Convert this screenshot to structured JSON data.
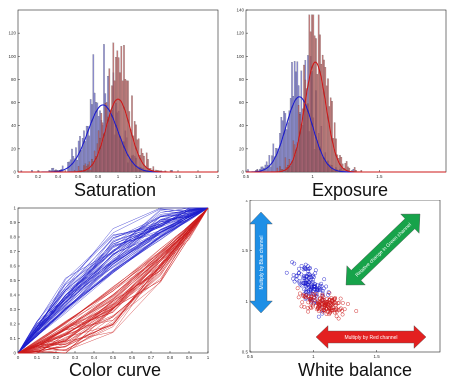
{
  "captions": {
    "saturation": "Saturation",
    "exposure": "Exposure",
    "color_curve": "Color curve",
    "white_balance": "White balance"
  },
  "colors": {
    "blue": "#1c1ccc",
    "red": "#cc1a1a",
    "blue_hist": "#6e6ec8",
    "red_hist": "#b75a5a",
    "arrow_blue": "#1e8fe6",
    "arrow_green": "#17a34a",
    "arrow_red": "#e32020"
  },
  "chart_data": [
    {
      "type": "histogram",
      "title": "Saturation",
      "xlim": [
        0,
        2
      ],
      "ylim": [
        0,
        140
      ],
      "xticks": [
        "0",
        "0.2",
        "0.4",
        "0.6",
        "0.8",
        "1",
        "1.2",
        "1.4",
        "1.6",
        "1.8",
        "2"
      ],
      "yticks": [
        "0",
        "20",
        "40",
        "60",
        "80",
        "100",
        "120"
      ],
      "series": [
        {
          "color": "blue",
          "fit_mean": 0.85,
          "fit_sd": 0.15,
          "fit_peak": 58
        },
        {
          "color": "red",
          "fit_mean": 1.0,
          "fit_sd": 0.12,
          "fit_peak": 63
        }
      ]
    },
    {
      "type": "histogram",
      "title": "Exposure",
      "xlim": [
        0.5,
        2
      ],
      "ylim": [
        0,
        140
      ],
      "xticks": [
        "0.5",
        "1",
        "1.5"
      ],
      "yticks": [
        "0",
        "20",
        "40",
        "60",
        "80",
        "100",
        "120",
        "140"
      ],
      "series": [
        {
          "color": "blue",
          "fit_mean": 0.9,
          "fit_sd": 0.1,
          "fit_peak": 65
        },
        {
          "color": "red",
          "fit_mean": 1.02,
          "fit_sd": 0.08,
          "fit_peak": 95
        }
      ]
    },
    {
      "type": "line",
      "title": "Color curve",
      "xlim": [
        0,
        1
      ],
      "ylim": [
        0,
        1
      ],
      "xticks": [
        "0",
        "0.1",
        "0.2",
        "0.3",
        "0.4",
        "0.5",
        "0.6",
        "0.7",
        "0.8",
        "0.9",
        "1"
      ],
      "yticks": [
        "0",
        "0.1",
        "0.2",
        "0.3",
        "0.4",
        "0.5",
        "0.6",
        "0.7",
        "0.8",
        "0.9",
        "1"
      ],
      "series": [
        {
          "color": "blue",
          "description": "bundle of curves bowing above the diagonal"
        },
        {
          "color": "red",
          "description": "bundle of curves bowing below the diagonal"
        }
      ]
    },
    {
      "type": "scatter",
      "title": "White balance",
      "xlim": [
        0.5,
        2
      ],
      "ylim": [
        0.5,
        2
      ],
      "xticks": [
        "0.5",
        "1",
        "1.5"
      ],
      "yticks": [
        "0.5",
        "1",
        "1.5",
        "2"
      ],
      "series": [
        {
          "color": "blue",
          "center": [
            0.98,
            1.15
          ]
        },
        {
          "color": "red",
          "center": [
            1.08,
            0.98
          ]
        }
      ],
      "annotations": [
        {
          "text": "Multiply by Blue channel",
          "color": "arrow_blue",
          "direction": "vertical"
        },
        {
          "text": "Relative change in Green channel",
          "color": "arrow_green",
          "direction": "diagonal"
        },
        {
          "text": "Multiply by Red channel",
          "color": "arrow_red",
          "direction": "horizontal"
        }
      ]
    }
  ]
}
